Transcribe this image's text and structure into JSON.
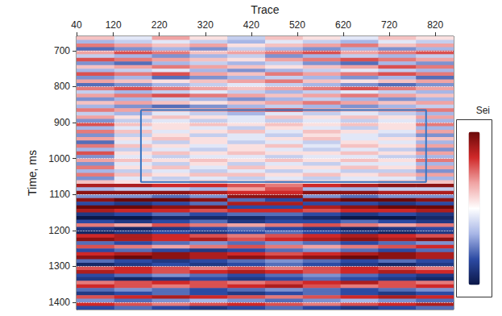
{
  "chart_data": {
    "type": "heatmap",
    "xlabel": "Trace",
    "ylabel": "Time, ms",
    "xlim": [
      40,
      860
    ],
    "ylim": [
      660,
      1420
    ],
    "xticks": [
      40,
      120,
      220,
      320,
      420,
      520,
      620,
      720,
      820
    ],
    "yticks": [
      700,
      800,
      900,
      1000,
      1100,
      1200,
      1300,
      1400
    ],
    "grid": true,
    "x_edges": [
      40,
      122,
      204,
      286,
      368,
      450,
      532,
      614,
      696,
      778,
      860
    ],
    "y_edges": [
      660,
      670,
      680,
      690,
      700,
      710,
      720,
      730,
      740,
      750,
      760,
      770,
      780,
      790,
      800,
      810,
      820,
      830,
      840,
      850,
      860,
      870,
      880,
      890,
      900,
      910,
      920,
      930,
      940,
      950,
      960,
      970,
      980,
      990,
      1000,
      1010,
      1020,
      1030,
      1040,
      1050,
      1060,
      1070,
      1080,
      1090,
      1100,
      1110,
      1120,
      1130,
      1140,
      1150,
      1160,
      1170,
      1180,
      1190,
      1200,
      1210,
      1220,
      1230,
      1240,
      1250,
      1260,
      1270,
      1280,
      1290,
      1300,
      1310,
      1320,
      1330,
      1340,
      1350,
      1360,
      1370,
      1380,
      1390,
      1400,
      1410,
      1420
    ],
    "amplitude": [
      [
        2,
        -1,
        3,
        1,
        -2,
        2,
        1,
        -1,
        2,
        1
      ],
      [
        -3,
        -2,
        -1,
        -2,
        -3,
        -1,
        -2,
        -3,
        -1,
        -2
      ],
      [
        4,
        3,
        2,
        3,
        1,
        2,
        3,
        4,
        2,
        3
      ],
      [
        -5,
        -4,
        -3,
        -4,
        -2,
        -3,
        -4,
        -3,
        -4,
        -3
      ],
      [
        3,
        5,
        4,
        2,
        3,
        4,
        5,
        3,
        4,
        5
      ],
      [
        -2,
        -3,
        -4,
        -3,
        -2,
        -4,
        -3,
        -2,
        -3,
        -2
      ],
      [
        5,
        4,
        3,
        2,
        1,
        3,
        4,
        5,
        4,
        3
      ],
      [
        -4,
        -5,
        -3,
        -2,
        -3,
        -2,
        -4,
        -5,
        -3,
        -4
      ],
      [
        2,
        3,
        4,
        3,
        2,
        1,
        2,
        3,
        5,
        4
      ],
      [
        -3,
        -2,
        -1,
        -3,
        -4,
        -3,
        -2,
        -1,
        -2,
        -3
      ],
      [
        5,
        4,
        5,
        3,
        2,
        4,
        3,
        4,
        5,
        4
      ],
      [
        -4,
        -3,
        -5,
        -4,
        -3,
        -2,
        -3,
        -4,
        -3,
        -5
      ],
      [
        3,
        2,
        1,
        2,
        3,
        4,
        2,
        1,
        2,
        3
      ],
      [
        -5,
        -4,
        -3,
        -2,
        -1,
        -2,
        -3,
        -4,
        -5,
        -4
      ],
      [
        4,
        5,
        4,
        3,
        2,
        3,
        4,
        5,
        4,
        3
      ],
      [
        -2,
        -3,
        -2,
        -1,
        -2,
        -3,
        -2,
        -1,
        -2,
        -3
      ],
      [
        3,
        4,
        5,
        4,
        3,
        2,
        3,
        4,
        3,
        2
      ],
      [
        -4,
        -3,
        -2,
        -3,
        -4,
        -3,
        -2,
        -3,
        -4,
        -3
      ],
      [
        2,
        3,
        2,
        1,
        2,
        3,
        4,
        3,
        2,
        3
      ],
      [
        -3,
        -4,
        -5,
        -4,
        -3,
        -2,
        -3,
        -4,
        -3,
        -2
      ],
      [
        4,
        3,
        2,
        3,
        4,
        5,
        3,
        2,
        3,
        4
      ],
      [
        -2,
        -3,
        -1,
        -2,
        -3,
        -1,
        -2,
        -1,
        -2,
        -3
      ],
      [
        3,
        1,
        2,
        1,
        -1,
        2,
        1,
        2,
        1,
        3
      ],
      [
        -4,
        -2,
        -1,
        -2,
        -1,
        -2,
        -1,
        -2,
        -1,
        -3
      ],
      [
        5,
        2,
        1,
        2,
        1,
        2,
        1,
        2,
        1,
        4
      ],
      [
        -3,
        -1,
        1,
        -1,
        -2,
        1,
        -1,
        -2,
        1,
        -3
      ],
      [
        4,
        2,
        -1,
        1,
        2,
        -1,
        2,
        1,
        -1,
        3
      ],
      [
        -4,
        -2,
        1,
        -2,
        -1,
        -2,
        1,
        -1,
        -2,
        -4
      ],
      [
        3,
        1,
        2,
        1,
        -1,
        1,
        2,
        -1,
        1,
        2
      ],
      [
        -5,
        -1,
        -2,
        1,
        -2,
        -1,
        -2,
        1,
        -1,
        -3
      ],
      [
        4,
        2,
        1,
        -1,
        1,
        2,
        -1,
        2,
        1,
        3
      ],
      [
        -3,
        -2,
        -1,
        -2,
        1,
        -1,
        -2,
        -1,
        -2,
        -4
      ],
      [
        5,
        1,
        2,
        1,
        2,
        1,
        1,
        2,
        1,
        3
      ],
      [
        -4,
        -1,
        -2,
        -1,
        -1,
        -2,
        -1,
        -1,
        -2,
        -3
      ],
      [
        3,
        2,
        1,
        2,
        1,
        2,
        1,
        2,
        1,
        4
      ],
      [
        -4,
        -1,
        -2,
        1,
        -2,
        -1,
        -2,
        -1,
        -1,
        -3
      ],
      [
        4,
        1,
        2,
        -1,
        2,
        1,
        1,
        2,
        1,
        3
      ],
      [
        -3,
        -2,
        -1,
        -2,
        -1,
        -2,
        -1,
        -2,
        -2,
        -4
      ],
      [
        4,
        2,
        1,
        2,
        2,
        1,
        2,
        1,
        2,
        3
      ],
      [
        -4,
        -1,
        -2,
        -1,
        -2,
        -1,
        -2,
        -1,
        -1,
        -3
      ],
      [
        2,
        1,
        1,
        2,
        1,
        2,
        1,
        1,
        2,
        2
      ],
      [
        7,
        7,
        6,
        6,
        5,
        4,
        6,
        7,
        8,
        8
      ],
      [
        -3,
        -2,
        -2,
        -3,
        3,
        5,
        -3,
        -3,
        -2,
        -2
      ],
      [
        8,
        8,
        8,
        7,
        6,
        6,
        8,
        8,
        7,
        7
      ],
      [
        -4,
        -4,
        -5,
        -4,
        8,
        8,
        -4,
        -5,
        -4,
        -4
      ],
      [
        8,
        9,
        9,
        8,
        -5,
        -6,
        8,
        9,
        9,
        8
      ],
      [
        -6,
        -7,
        -6,
        -5,
        7,
        7,
        -6,
        -6,
        -7,
        -6
      ],
      [
        9,
        9,
        8,
        8,
        -6,
        -6,
        7,
        8,
        9,
        9
      ],
      [
        7,
        6,
        6,
        5,
        6,
        6,
        5,
        6,
        6,
        7
      ],
      [
        -7,
        -6,
        -5,
        -6,
        -5,
        -5,
        -6,
        -7,
        -6,
        -7
      ],
      [
        -9,
        -9,
        -8,
        -8,
        -8,
        -7,
        -8,
        -9,
        -9,
        -8
      ],
      [
        -6,
        -7,
        -6,
        -5,
        -7,
        -6,
        -6,
        -5,
        -6,
        -7
      ],
      [
        4,
        3,
        5,
        4,
        3,
        4,
        5,
        4,
        3,
        4
      ],
      [
        -7,
        -8,
        -7,
        -6,
        -5,
        -6,
        -7,
        -8,
        -7,
        -6
      ],
      [
        -8,
        -7,
        -6,
        -7,
        -6,
        -5,
        -6,
        -7,
        -8,
        -7
      ],
      [
        6,
        7,
        6,
        5,
        4,
        5,
        6,
        7,
        6,
        5
      ],
      [
        8,
        7,
        6,
        7,
        5,
        6,
        7,
        8,
        7,
        8
      ],
      [
        -5,
        -6,
        -5,
        -4,
        -5,
        -4,
        -5,
        -6,
        -5,
        -4
      ],
      [
        5,
        4,
        3,
        4,
        5,
        4,
        3,
        4,
        5,
        6
      ],
      [
        -6,
        -5,
        -6,
        -7,
        -6,
        -5,
        -4,
        -5,
        -6,
        -5
      ],
      [
        6,
        7,
        8,
        7,
        6,
        5,
        6,
        7,
        8,
        7
      ],
      [
        8,
        9,
        8,
        7,
        8,
        7,
        8,
        9,
        8,
        7
      ],
      [
        -5,
        -6,
        -7,
        -6,
        -5,
        -4,
        -5,
        -6,
        -5,
        -6
      ],
      [
        -8,
        -7,
        -6,
        -7,
        -6,
        -5,
        -6,
        -7,
        -8,
        -7
      ],
      [
        5,
        6,
        5,
        4,
        5,
        4,
        5,
        6,
        5,
        4
      ],
      [
        7,
        6,
        5,
        6,
        7,
        6,
        5,
        6,
        7,
        6
      ],
      [
        -6,
        -5,
        -4,
        -5,
        -6,
        -5,
        -4,
        -5,
        -6,
        -7
      ],
      [
        -7,
        -8,
        -7,
        -6,
        -7,
        -6,
        -5,
        -6,
        -7,
        -8
      ],
      [
        4,
        5,
        6,
        5,
        4,
        5,
        6,
        7,
        5,
        4
      ],
      [
        6,
        5,
        4,
        5,
        6,
        7,
        5,
        4,
        5,
        6
      ],
      [
        -5,
        -4,
        -5,
        -6,
        -5,
        -4,
        -5,
        -6,
        -5,
        -4
      ],
      [
        -7,
        -6,
        -5,
        -6,
        -7,
        -6,
        -5,
        -6,
        -7,
        -6
      ],
      [
        5,
        6,
        7,
        6,
        5,
        4,
        5,
        6,
        7,
        6
      ],
      [
        -4,
        -5,
        -4,
        -3,
        -4,
        -5,
        -4,
        -3,
        -4,
        -5
      ],
      [
        6,
        5,
        4,
        5,
        6,
        5,
        4,
        5,
        6,
        7
      ],
      [
        -6,
        -5,
        -6,
        -7,
        -6,
        -5,
        -6,
        -7,
        -6,
        -5
      ]
    ],
    "colorbar": {
      "title": "Sei",
      "range": [
        -9,
        9
      ],
      "colors": [
        "#0b1747",
        "#2c4aa3",
        "#a7b6e6",
        "#ffffff",
        "#f0a3a3",
        "#cf2828",
        "#6a0909"
      ]
    },
    "annotations": [
      {
        "type": "rectangle",
        "x": [
          180,
          800
        ],
        "y": [
          865,
          1065
        ],
        "color": "#3a74c0"
      }
    ]
  }
}
